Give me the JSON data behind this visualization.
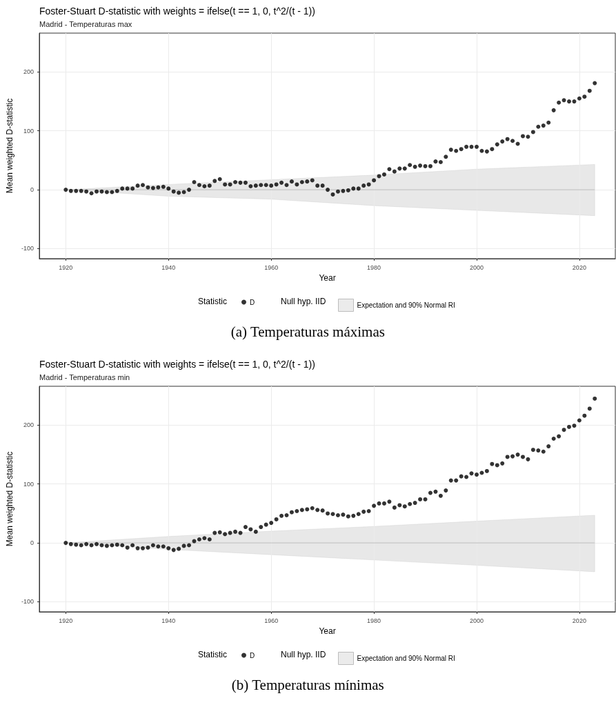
{
  "chart_data": [
    {
      "type": "scatter",
      "title": "Foster-Stuart D-statistic with weights = ifelse(t == 1, 0, t^2/(t - 1))",
      "subtitle": "Madrid - Temperaturas max",
      "xlabel": "Year",
      "ylabel": "Mean weighted D-statistic",
      "legend_title": "Statistic",
      "annotations": [
        "Null hyp. IID",
        "(a) Temperaturas máximas"
      ],
      "xlim": [
        1914.85,
        2027
      ],
      "xticks": [
        1920,
        1940,
        1960,
        1980,
        2000,
        2020
      ],
      "ylim": [
        -117,
        266
      ],
      "yticks": [
        -100,
        0,
        100,
        200
      ],
      "grid": true,
      "legend": "bottom",
      "series": [
        {
          "name": "Expectation and 90% Normal RI",
          "type": "line",
          "color": "#bdbdbd",
          "x": [
            1920,
            1940,
            1960,
            1980,
            2000,
            2023
          ],
          "values": [
            0,
            0,
            0,
            0,
            0,
            0
          ],
          "lower": [
            0,
            -11,
            -16,
            -27,
            -35,
            -44
          ],
          "upper": [
            0,
            9,
            17,
            25,
            35,
            43
          ]
        },
        {
          "name": "D",
          "marker": "circle",
          "color": "#000000",
          "x": [
            1920,
            1921,
            1922,
            1923,
            1924,
            1925,
            1926,
            1927,
            1928,
            1929,
            1930,
            1931,
            1932,
            1933,
            1934,
            1935,
            1936,
            1937,
            1938,
            1939,
            1940,
            1941,
            1942,
            1943,
            1944,
            1945,
            1946,
            1947,
            1948,
            1949,
            1950,
            1951,
            1952,
            1953,
            1954,
            1955,
            1956,
            1957,
            1958,
            1959,
            1960,
            1961,
            1962,
            1963,
            1964,
            1965,
            1966,
            1967,
            1968,
            1969,
            1970,
            1971,
            1972,
            1973,
            1974,
            1975,
            1976,
            1977,
            1978,
            1979,
            1980,
            1981,
            1982,
            1983,
            1984,
            1985,
            1986,
            1987,
            1988,
            1989,
            1990,
            1991,
            1992,
            1993,
            1994,
            1995,
            1996,
            1997,
            1998,
            1999,
            2000,
            2001,
            2002,
            2003,
            2004,
            2005,
            2006,
            2007,
            2008,
            2009,
            2010,
            2011,
            2012,
            2013,
            2014,
            2015,
            2016,
            2017,
            2018,
            2019,
            2020,
            2021,
            2022,
            2023
          ],
          "values": [
            0,
            -2,
            -2,
            -2,
            -3,
            -6,
            -3,
            -3,
            -4,
            -4,
            -2,
            2,
            2,
            2,
            7,
            8,
            4,
            3,
            4,
            5,
            2,
            -3,
            -5,
            -4,
            0,
            13,
            8,
            6,
            7,
            15,
            18,
            9,
            9,
            13,
            12,
            12,
            6,
            7,
            8,
            8,
            7,
            9,
            12,
            8,
            14,
            9,
            13,
            14,
            16,
            7,
            7,
            0,
            -8,
            -3,
            -2,
            -1,
            2,
            2,
            7,
            9,
            16,
            23,
            26,
            35,
            31,
            36,
            36,
            42,
            39,
            41,
            40,
            40,
            48,
            47,
            56,
            68,
            66,
            69,
            73,
            73,
            73,
            66,
            65,
            69,
            77,
            82,
            86,
            83,
            78,
            91,
            90,
            98,
            107,
            109,
            114,
            135,
            148,
            152,
            150,
            150,
            155,
            158,
            168,
            181
          ]
        }
      ]
    },
    {
      "type": "scatter",
      "title": "Foster-Stuart D-statistic with weights = ifelse(t == 1, 0, t^2/(t - 1))",
      "subtitle": "Madrid - Temperaturas min",
      "xlabel": "Year",
      "ylabel": "Mean weighted D-statistic",
      "legend_title": "Statistic",
      "annotations": [
        "Null hyp. IID",
        "(b) Temperaturas mínimas"
      ],
      "xlim": [
        1914.85,
        2027
      ],
      "xticks": [
        1920,
        1940,
        1960,
        1980,
        2000,
        2020
      ],
      "ylim": [
        -117,
        266
      ],
      "yticks": [
        -100,
        0,
        100,
        200
      ],
      "grid": true,
      "legend": "bottom",
      "series": [
        {
          "name": "Expectation and 90% Normal RI",
          "type": "line",
          "color": "#bdbdbd",
          "x": [
            1920,
            1940,
            1960,
            1980,
            2000,
            2023
          ],
          "values": [
            0,
            0,
            0,
            0,
            0,
            0
          ],
          "lower": [
            0,
            -11,
            -20,
            -29,
            -38,
            -49
          ],
          "upper": [
            0,
            11,
            20,
            28,
            37,
            47
          ]
        },
        {
          "name": "D",
          "marker": "circle",
          "color": "#000000",
          "x": [
            1920,
            1921,
            1922,
            1923,
            1924,
            1925,
            1926,
            1927,
            1928,
            1929,
            1930,
            1931,
            1932,
            1933,
            1934,
            1935,
            1936,
            1937,
            1938,
            1939,
            1940,
            1941,
            1942,
            1943,
            1944,
            1945,
            1946,
            1947,
            1948,
            1949,
            1950,
            1951,
            1952,
            1953,
            1954,
            1955,
            1956,
            1957,
            1958,
            1959,
            1960,
            1961,
            1962,
            1963,
            1964,
            1965,
            1966,
            1967,
            1968,
            1969,
            1970,
            1971,
            1972,
            1973,
            1974,
            1975,
            1976,
            1977,
            1978,
            1979,
            1980,
            1981,
            1982,
            1983,
            1984,
            1985,
            1986,
            1987,
            1988,
            1989,
            1990,
            1991,
            1992,
            1993,
            1994,
            1995,
            1996,
            1997,
            1998,
            1999,
            2000,
            2001,
            2002,
            2003,
            2004,
            2005,
            2006,
            2007,
            2008,
            2009,
            2010,
            2011,
            2012,
            2013,
            2014,
            2015,
            2016,
            2017,
            2018,
            2019,
            2020,
            2021,
            2022,
            2023
          ],
          "values": [
            0,
            -2,
            -3,
            -4,
            -2,
            -4,
            -2,
            -4,
            -5,
            -4,
            -3,
            -4,
            -8,
            -4,
            -9,
            -9,
            -8,
            -4,
            -6,
            -6,
            -9,
            -12,
            -10,
            -5,
            -4,
            3,
            6,
            8,
            6,
            17,
            18,
            15,
            17,
            19,
            17,
            27,
            23,
            19,
            27,
            31,
            34,
            40,
            46,
            47,
            52,
            54,
            56,
            57,
            59,
            56,
            55,
            50,
            49,
            47,
            48,
            45,
            46,
            49,
            53,
            54,
            63,
            67,
            67,
            70,
            60,
            64,
            62,
            66,
            68,
            74,
            74,
            85,
            87,
            80,
            89,
            106,
            106,
            113,
            112,
            118,
            116,
            119,
            122,
            134,
            132,
            135,
            146,
            147,
            150,
            146,
            142,
            158,
            157,
            155,
            164,
            177,
            181,
            192,
            197,
            199,
            208,
            216,
            228,
            245
          ]
        }
      ]
    }
  ]
}
